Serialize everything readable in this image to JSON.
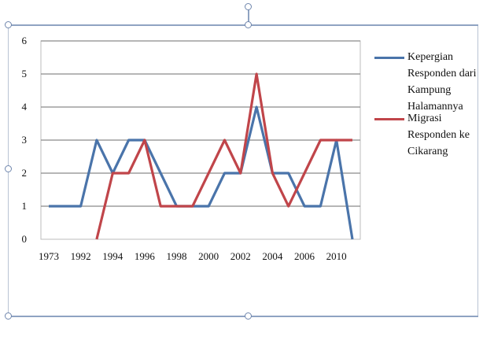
{
  "chart_data": {
    "type": "line",
    "title": "",
    "xlabel": "",
    "ylabel": "",
    "ylim": [
      0,
      6
    ],
    "yticks": [
      "0",
      "1",
      "2",
      "3",
      "4",
      "5",
      "6"
    ],
    "x_tick_labels": [
      "1973",
      "1992",
      "1994",
      "1996",
      "1998",
      "2000",
      "2002",
      "2004",
      "2006",
      "2010"
    ],
    "grid": true,
    "legend_position": "right",
    "series": [
      {
        "name": "Kepergian Responden dari Kampung Halamannya",
        "color": "#4a74aa",
        "values": [
          1,
          1,
          1,
          3,
          2,
          3,
          3,
          2,
          1,
          1,
          1,
          2,
          2,
          4,
          2,
          2,
          1,
          1,
          3,
          0
        ]
      },
      {
        "name": "Migrasi Responden ke Cikarang",
        "color": "#c0454a",
        "values": [
          null,
          null,
          null,
          0,
          2,
          2,
          3,
          1,
          1,
          1,
          2,
          3,
          2,
          5,
          2,
          1,
          2,
          3,
          3,
          3
        ]
      }
    ]
  }
}
